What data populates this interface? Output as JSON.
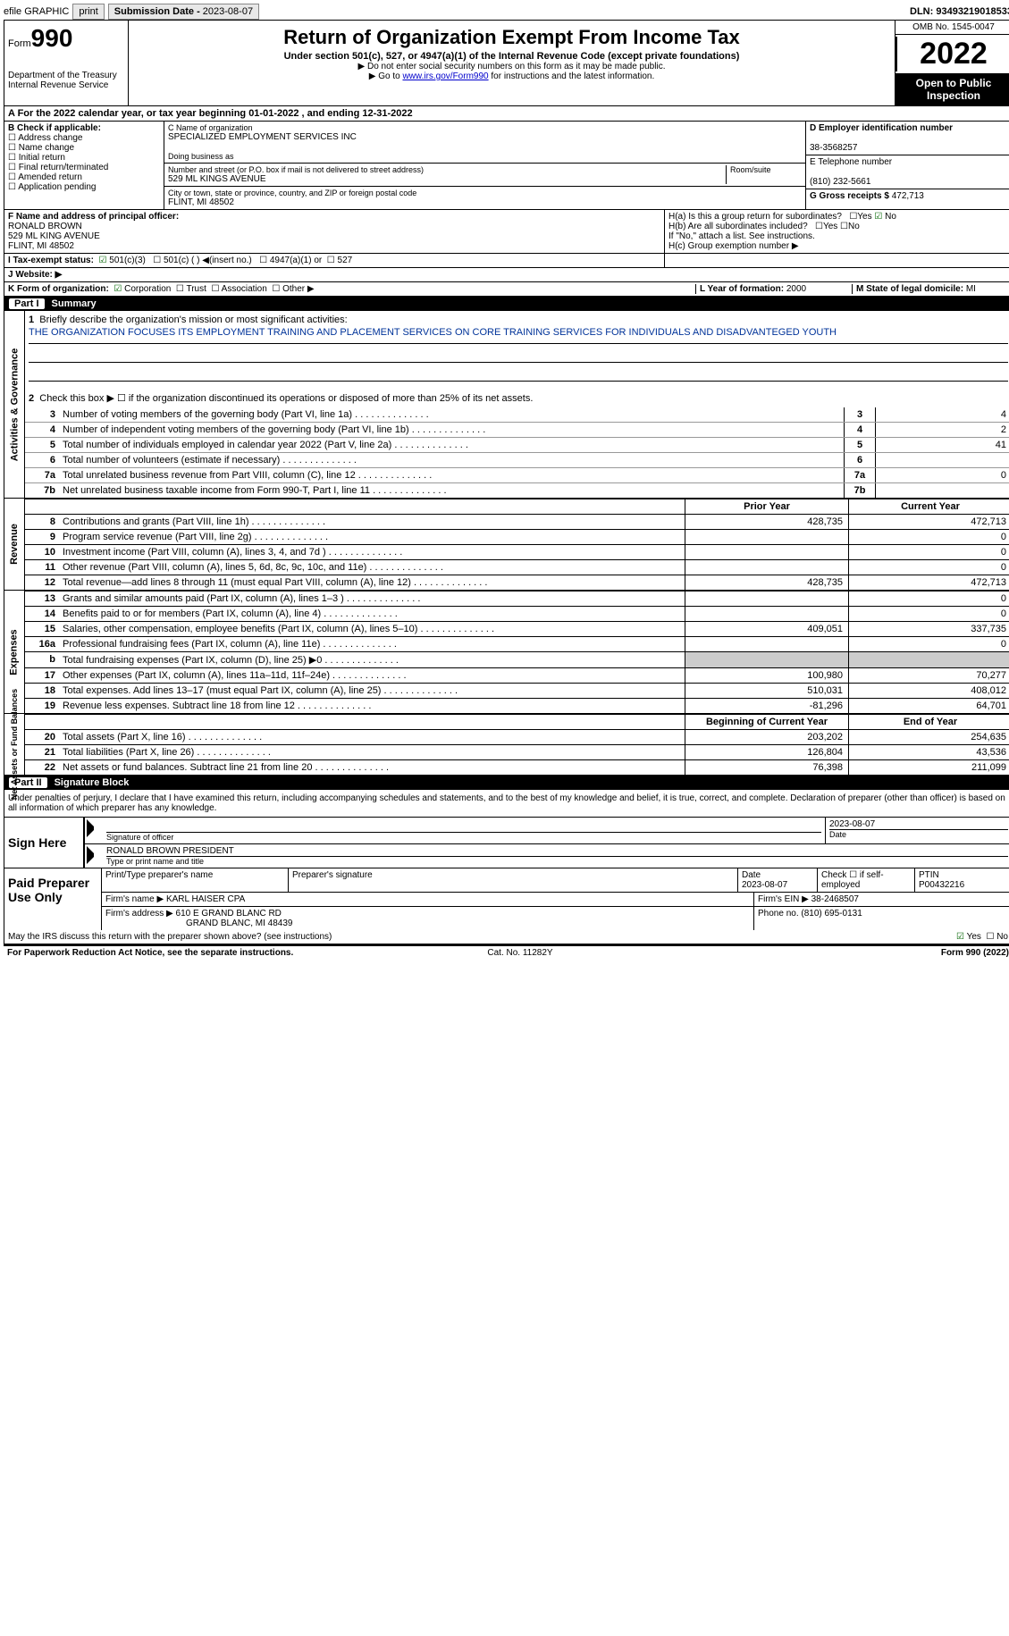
{
  "topbar": {
    "efile_label": "efile GRAPHIC",
    "print_btn": "print",
    "sub_date_lbl": "Submission Date - ",
    "sub_date": "2023-08-07",
    "dln_lbl": "DLN: ",
    "dln": "93493219018533"
  },
  "header": {
    "form_word": "Form",
    "form_num": "990",
    "dept": "Department of the Treasury\nInternal Revenue Service",
    "title": "Return of Organization Exempt From Income Tax",
    "sub": "Under section 501(c), 527, or 4947(a)(1) of the Internal Revenue Code (except private foundations)",
    "note1": "▶ Do not enter social security numbers on this form as it may be made public.",
    "note2_pre": "▶ Go to ",
    "note2_link": "www.irs.gov/Form990",
    "note2_post": " for instructions and the latest information.",
    "omb": "OMB No. 1545-0047",
    "year": "2022",
    "open": "Open to Public Inspection"
  },
  "period": {
    "text": "A For the 2022 calendar year, or tax year beginning 01-01-2022   , and ending 12-31-2022"
  },
  "boxB": {
    "label": "B Check if applicable:",
    "items": [
      "Address change",
      "Name change",
      "Initial return",
      "Final return/terminated",
      "Amended return",
      "Application pending"
    ]
  },
  "boxC": {
    "name_lbl": "C Name of organization",
    "name": "SPECIALIZED EMPLOYMENT SERVICES INC",
    "dba_lbl": "Doing business as",
    "dba": "",
    "street_lbl": "Number and street (or P.O. box if mail is not delivered to street address)",
    "room_lbl": "Room/suite",
    "street": "529 ML KINGS AVENUE",
    "city_lbl": "City or town, state or province, country, and ZIP or foreign postal code",
    "city": "FLINT, MI  48502"
  },
  "boxD": {
    "ein_lbl": "D Employer identification number",
    "ein": "38-3568257",
    "phone_lbl": "E Telephone number",
    "phone": "(810) 232-5661",
    "gross_lbl": "G Gross receipts $ ",
    "gross": "472,713"
  },
  "boxF": {
    "lbl": "F Name and address of principal officer:",
    "name": "RONALD BROWN",
    "addr1": "529 ML KING AVENUE",
    "addr2": "FLINT, MI  48502"
  },
  "boxH": {
    "a": "H(a)  Is this a group return for subordinates?",
    "a_no": "No",
    "b": "H(b)  Are all subordinates included?",
    "b_note": "If \"No,\" attach a list. See instructions.",
    "c": "H(c)  Group exemption number ▶"
  },
  "boxI": {
    "lbl": "I   Tax-exempt status:",
    "o1": "501(c)(3)",
    "o2": "501(c) (  ) ◀(insert no.)",
    "o3": "4947(a)(1) or",
    "o4": "527"
  },
  "boxJ": {
    "lbl": "J   Website: ▶"
  },
  "boxK": {
    "lbl": "K Form of organization:",
    "o1": "Corporation",
    "o2": "Trust",
    "o3": "Association",
    "o4": "Other ▶"
  },
  "boxL": {
    "lbl": "L Year of formation: ",
    "val": "2000"
  },
  "boxM": {
    "lbl": "M State of legal domicile: ",
    "val": "MI"
  },
  "parts": {
    "p1": "Part I",
    "p1t": "Summary",
    "p2": "Part II",
    "p2t": "Signature Block"
  },
  "rot": {
    "ag": "Activities & Governance",
    "rev": "Revenue",
    "exp": "Expenses",
    "na": "Net Assets or\nFund Balances"
  },
  "summary": {
    "l1": "Briefly describe the organization's mission or most significant activities:",
    "mission": "THE ORGANIZATION FOCUSES ITS EMPLOYMENT TRAINING AND PLACEMENT SERVICES ON CORE TRAINING SERVICES FOR INDIVIDUALS AND DISADVANTEGED YOUTH",
    "l2": "Check this box ▶ ☐ if the organization discontinued its operations or disposed of more than 25% of its net assets.",
    "rows_small": [
      {
        "n": "3",
        "d": "Number of voting members of the governing body (Part VI, line 1a)",
        "v": "4"
      },
      {
        "n": "4",
        "d": "Number of independent voting members of the governing body (Part VI, line 1b)",
        "v": "2"
      },
      {
        "n": "5",
        "d": "Total number of individuals employed in calendar year 2022 (Part V, line 2a)",
        "v": "41"
      },
      {
        "n": "6",
        "d": "Total number of volunteers (estimate if necessary)",
        "v": ""
      },
      {
        "n": "7a",
        "d": "Total unrelated business revenue from Part VIII, column (C), line 12",
        "v": "0"
      },
      {
        "n": "7b",
        "d": "Net unrelated business taxable income from Form 990-T, Part I, line 11",
        "v": ""
      }
    ],
    "hdr_prior": "Prior Year",
    "hdr_curr": "Current Year",
    "rev": [
      {
        "n": "8",
        "d": "Contributions and grants (Part VIII, line 1h)",
        "p": "428,735",
        "c": "472,713"
      },
      {
        "n": "9",
        "d": "Program service revenue (Part VIII, line 2g)",
        "p": "",
        "c": "0"
      },
      {
        "n": "10",
        "d": "Investment income (Part VIII, column (A), lines 3, 4, and 7d )",
        "p": "",
        "c": "0"
      },
      {
        "n": "11",
        "d": "Other revenue (Part VIII, column (A), lines 5, 6d, 8c, 9c, 10c, and 11e)",
        "p": "",
        "c": "0"
      },
      {
        "n": "12",
        "d": "Total revenue—add lines 8 through 11 (must equal Part VIII, column (A), line 12)",
        "p": "428,735",
        "c": "472,713"
      }
    ],
    "exp": [
      {
        "n": "13",
        "d": "Grants and similar amounts paid (Part IX, column (A), lines 1–3 )",
        "p": "",
        "c": "0"
      },
      {
        "n": "14",
        "d": "Benefits paid to or for members (Part IX, column (A), line 4)",
        "p": "",
        "c": "0"
      },
      {
        "n": "15",
        "d": "Salaries, other compensation, employee benefits (Part IX, column (A), lines 5–10)",
        "p": "409,051",
        "c": "337,735"
      },
      {
        "n": "16a",
        "d": "Professional fundraising fees (Part IX, column (A), line 11e)",
        "p": "",
        "c": "0"
      },
      {
        "n": "b",
        "d": "Total fundraising expenses (Part IX, column (D), line 25) ▶0",
        "p": "grey",
        "c": "grey"
      },
      {
        "n": "17",
        "d": "Other expenses (Part IX, column (A), lines 11a–11d, 11f–24e)",
        "p": "100,980",
        "c": "70,277"
      },
      {
        "n": "18",
        "d": "Total expenses. Add lines 13–17 (must equal Part IX, column (A), line 25)",
        "p": "510,031",
        "c": "408,012"
      },
      {
        "n": "19",
        "d": "Revenue less expenses. Subtract line 18 from line 12",
        "p": "-81,296",
        "c": "64,701"
      }
    ],
    "hdr_beg": "Beginning of Current Year",
    "hdr_end": "End of Year",
    "na": [
      {
        "n": "20",
        "d": "Total assets (Part X, line 16)",
        "p": "203,202",
        "c": "254,635"
      },
      {
        "n": "21",
        "d": "Total liabilities (Part X, line 26)",
        "p": "126,804",
        "c": "43,536"
      },
      {
        "n": "22",
        "d": "Net assets or fund balances. Subtract line 21 from line 20",
        "p": "76,398",
        "c": "211,099"
      }
    ]
  },
  "sig": {
    "decl": "Under penalties of perjury, I declare that I have examined this return, including accompanying schedules and statements, and to the best of my knowledge and belief, it is true, correct, and complete. Declaration of preparer (other than officer) is based on all information of which preparer has any knowledge.",
    "sign_here": "Sign Here",
    "sig_officer": "Signature of officer",
    "sig_date": "2023-08-07",
    "date_lbl": "Date",
    "name_title": "RONALD BROWN  PRESIDENT",
    "type_lbl": "Type or print name and title",
    "paid": "Paid Preparer Use Only",
    "prep_name_lbl": "Print/Type preparer's name",
    "prep_sig_lbl": "Preparer's signature",
    "prep_date_lbl": "Date",
    "prep_date": "2023-08-07",
    "check_lbl": "Check ☐ if self-employed",
    "ptin_lbl": "PTIN",
    "ptin": "P00432216",
    "firm_name_lbl": "Firm's name    ▶ ",
    "firm_name": "KARL HAISER CPA",
    "firm_ein_lbl": "Firm's EIN ▶ ",
    "firm_ein": "38-2468507",
    "firm_addr_lbl": "Firm's address ▶ ",
    "firm_addr": "610 E GRAND BLANC RD",
    "firm_addr2": "GRAND BLANC, MI  48439",
    "phone_lbl": "Phone no. ",
    "phone": "(810) 695-0131",
    "may_irs": "May the IRS discuss this return with the preparer shown above? (see instructions)",
    "yes": "Yes",
    "no": "No"
  },
  "footer": {
    "pra": "For Paperwork Reduction Act Notice, see the separate instructions.",
    "cat": "Cat. No. 11282Y",
    "form": "Form 990 (2022)"
  }
}
